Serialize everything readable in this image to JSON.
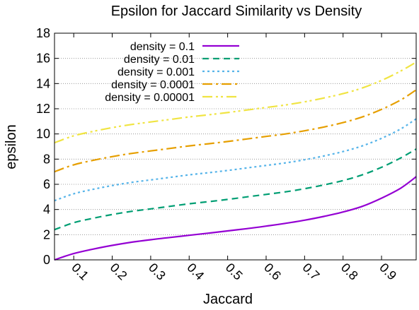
{
  "chart_data": {
    "type": "line",
    "title": "Epsilon for Jaccard Similarity vs Density",
    "xlabel": "Jaccard",
    "ylabel": "epsilon",
    "xlim": [
      0.05,
      0.99
    ],
    "ylim": [
      0,
      18
    ],
    "x_ticks": [
      "0.1",
      "0.2",
      "0.3",
      "0.4",
      "0.5",
      "0.6",
      "0.7",
      "0.8",
      "0.9"
    ],
    "y_ticks": [
      "0",
      "2",
      "4",
      "6",
      "8",
      "10",
      "12",
      "14",
      "16",
      "18"
    ],
    "grid": "horizontal dotted",
    "legend_position": "top-left",
    "x": [
      0.05,
      0.1,
      0.15,
      0.2,
      0.25,
      0.3,
      0.35,
      0.4,
      0.45,
      0.5,
      0.55,
      0.6,
      0.65,
      0.7,
      0.75,
      0.8,
      0.85,
      0.9,
      0.95,
      0.99
    ],
    "series": [
      {
        "name": "density = 0.1",
        "color": "#9400d3",
        "dash": "solid",
        "values": [
          0.0,
          0.5,
          0.85,
          1.15,
          1.4,
          1.6,
          1.78,
          1.95,
          2.12,
          2.3,
          2.48,
          2.68,
          2.9,
          3.15,
          3.45,
          3.8,
          4.25,
          4.9,
          5.7,
          6.6
        ]
      },
      {
        "name": "density = 0.01",
        "color": "#009e73",
        "dash": "dash",
        "values": [
          2.4,
          2.95,
          3.3,
          3.6,
          3.85,
          4.05,
          4.25,
          4.45,
          4.62,
          4.8,
          5.0,
          5.2,
          5.4,
          5.65,
          5.95,
          6.3,
          6.75,
          7.35,
          8.1,
          8.8
        ]
      },
      {
        "name": "density = 0.001",
        "color": "#56b4e9",
        "dash": "dot",
        "values": [
          4.7,
          5.25,
          5.6,
          5.9,
          6.15,
          6.35,
          6.55,
          6.75,
          6.92,
          7.1,
          7.3,
          7.5,
          7.7,
          7.95,
          8.25,
          8.6,
          9.05,
          9.65,
          10.4,
          11.2
        ]
      },
      {
        "name": "density = 0.0001",
        "color": "#e69f00",
        "dash": "dashdot",
        "values": [
          7.0,
          7.55,
          7.9,
          8.2,
          8.45,
          8.65,
          8.85,
          9.05,
          9.22,
          9.4,
          9.6,
          9.8,
          10.0,
          10.25,
          10.55,
          10.9,
          11.35,
          11.95,
          12.7,
          13.5
        ]
      },
      {
        "name": "density = 0.00001",
        "color": "#f0e442",
        "dash": "dashdotdot",
        "values": [
          9.3,
          9.85,
          10.2,
          10.5,
          10.75,
          10.95,
          11.15,
          11.35,
          11.52,
          11.7,
          11.9,
          12.1,
          12.3,
          12.55,
          12.85,
          13.2,
          13.65,
          14.25,
          15.0,
          15.7
        ]
      }
    ]
  }
}
